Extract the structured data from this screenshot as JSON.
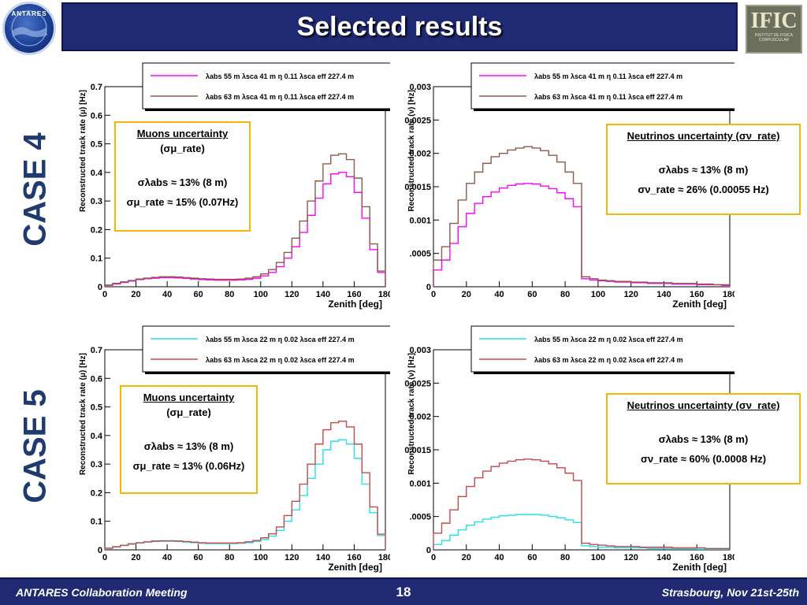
{
  "header": {
    "title": "Selected results"
  },
  "logos": {
    "left_text": "ANTARES",
    "right_text": "IFIC",
    "right_subtext": "INSTITUT DE FISICA CORPUSCULAR"
  },
  "cases": [
    {
      "label": "CASE 4"
    },
    {
      "label": "CASE 5"
    }
  ],
  "colors": {
    "case4_series1": "#ff00ff",
    "case4_series2": "#8b5a48",
    "case5_series1": "#22e0ee",
    "case5_series2": "#c84848",
    "uncertainty_border": "#f2b705",
    "bar": "#1f2a73"
  },
  "boxes": {
    "c4_mu": {
      "title": "Muons uncertainty",
      "paren": "(σμ_rate)",
      "line1": "σλabs ≈ 13% (8 m)",
      "line2": "σμ_rate ≈ 15% (0.07Hz)"
    },
    "c4_nu": {
      "title": "Neutrinos uncertainty (σν_rate)",
      "line1": "σλabs ≈ 13% (8 m)",
      "line2": "σν_rate ≈ 26% (0.00055 Hz)"
    },
    "c5_mu": {
      "title": "Muons uncertainty",
      "paren": "(σμ_rate)",
      "line1": "σλabs ≈ 13% (8 m)",
      "line2": "σμ_rate ≈ 13% (0.06Hz)"
    },
    "c5_nu": {
      "title": "Neutrinos uncertainty (σν_rate)",
      "line1": "σλabs ≈ 13% (8 m)",
      "line2": "σν_rate ≈ 60% (0.0008 Hz)"
    }
  },
  "footer": {
    "left": "ANTARES Collaboration Meeting",
    "page": "18",
    "right": "Strasbourg, Nov 21st-25th"
  },
  "chart_data": [
    {
      "id": "c4_mu",
      "type": "line",
      "xlabel": "Zenith [deg]",
      "ylabel": "Reconstructed track rate (μ) [Hz]",
      "xlim": [
        0,
        180
      ],
      "ylim": [
        0,
        0.7
      ],
      "xticks": [
        "0",
        "20",
        "40",
        "60",
        "80",
        "100",
        "120",
        "140",
        "160",
        "180"
      ],
      "yticks": [
        "0",
        "0.1",
        "0.2",
        "0.3",
        "0.4",
        "0.5",
        "0.6",
        "0.7"
      ],
      "x": [
        0,
        5,
        10,
        15,
        20,
        25,
        30,
        35,
        40,
        45,
        50,
        55,
        60,
        65,
        70,
        75,
        80,
        85,
        90,
        95,
        100,
        105,
        110,
        115,
        120,
        125,
        130,
        135,
        140,
        145,
        150,
        155,
        160,
        165,
        170,
        175
      ],
      "series": [
        {
          "name": "λabs 55 m λsca 41 m η 0.11 λsca eff 227.4 m",
          "color": "#ff00ff",
          "values": [
            0.005,
            0.01,
            0.015,
            0.02,
            0.025,
            0.028,
            0.03,
            0.032,
            0.032,
            0.031,
            0.029,
            0.027,
            0.025,
            0.024,
            0.023,
            0.023,
            0.023,
            0.024,
            0.026,
            0.03,
            0.038,
            0.05,
            0.07,
            0.1,
            0.14,
            0.19,
            0.25,
            0.31,
            0.36,
            0.395,
            0.4,
            0.385,
            0.33,
            0.24,
            0.13,
            0.05
          ]
        },
        {
          "name": "λabs 63 m λsca 41 m η 0.11 λsca eff 227.4 m",
          "color": "#8b5a48",
          "values": [
            0.006,
            0.012,
            0.017,
            0.022,
            0.027,
            0.03,
            0.033,
            0.035,
            0.035,
            0.034,
            0.032,
            0.03,
            0.028,
            0.027,
            0.026,
            0.026,
            0.026,
            0.027,
            0.03,
            0.035,
            0.045,
            0.06,
            0.085,
            0.12,
            0.17,
            0.23,
            0.3,
            0.37,
            0.43,
            0.46,
            0.465,
            0.445,
            0.38,
            0.28,
            0.15,
            0.055
          ]
        }
      ]
    },
    {
      "id": "c4_nu",
      "type": "line",
      "xlabel": "Zenith [deg]",
      "ylabel": "Reconstructed track rate (ν) [Hz]",
      "xlim": [
        0,
        180
      ],
      "ylim": [
        0,
        0.003
      ],
      "xticks": [
        "0",
        "20",
        "40",
        "60",
        "80",
        "100",
        "120",
        "140",
        "160",
        "180"
      ],
      "yticks": [
        "0",
        ".0005",
        "0.001",
        "0.0015",
        "0.002",
        "0.0025",
        "0.003"
      ],
      "x": [
        0,
        5,
        10,
        15,
        20,
        25,
        30,
        35,
        40,
        45,
        50,
        55,
        60,
        65,
        70,
        75,
        80,
        85,
        90,
        95,
        100,
        105,
        110,
        115,
        120,
        125,
        130,
        135,
        140,
        145,
        150,
        155,
        160,
        165,
        170,
        175
      ],
      "series": [
        {
          "name": "λabs 55 m λsca 41 m η 0.11 λsca eff 227.4 m",
          "color": "#ff00ff",
          "values": [
            0.00025,
            0.0004,
            0.00065,
            0.0009,
            0.0011,
            0.00125,
            0.00135,
            0.00142,
            0.00148,
            0.00152,
            0.00154,
            0.00155,
            0.00154,
            0.00151,
            0.00147,
            0.00141,
            0.00132,
            0.0012,
            0.00012,
            0.0001,
            9e-05,
            8e-05,
            7e-05,
            7e-05,
            6e-05,
            6e-05,
            5e-05,
            5e-05,
            5e-05,
            4e-05,
            4e-05,
            4e-05,
            3e-05,
            3e-05,
            3e-05,
            2e-05
          ]
        },
        {
          "name": "λabs 63 m λsca 41 m η 0.11 λsca eff 227.4 m",
          "color": "#8b5a48",
          "values": [
            0.0004,
            0.0006,
            0.00095,
            0.0013,
            0.00155,
            0.00172,
            0.00185,
            0.00195,
            0.002,
            0.00205,
            0.00208,
            0.0021,
            0.00208,
            0.00204,
            0.00197,
            0.00187,
            0.00172,
            0.00155,
            0.00015,
            0.00012,
            0.0001,
            9e-05,
            8e-05,
            8e-05,
            7e-05,
            7e-05,
            6e-05,
            6e-05,
            6e-05,
            5e-05,
            5e-05,
            5e-05,
            4e-05,
            4e-05,
            3e-05,
            3e-05
          ]
        }
      ]
    },
    {
      "id": "c5_mu",
      "type": "line",
      "xlabel": "Zenith [deg]",
      "ylabel": "Reconstructed track rate (μ) [Hz]",
      "xlim": [
        0,
        180
      ],
      "ylim": [
        0,
        0.7
      ],
      "xticks": [
        "0",
        "20",
        "40",
        "60",
        "80",
        "100",
        "120",
        "140",
        "160",
        "180"
      ],
      "yticks": [
        "0",
        "0.1",
        "0.2",
        "0.3",
        "0.4",
        "0.5",
        "0.6",
        "0.7"
      ],
      "x": [
        0,
        5,
        10,
        15,
        20,
        25,
        30,
        35,
        40,
        45,
        50,
        55,
        60,
        65,
        70,
        75,
        80,
        85,
        90,
        95,
        100,
        105,
        110,
        115,
        120,
        125,
        130,
        135,
        140,
        145,
        150,
        155,
        160,
        165,
        170,
        175
      ],
      "series": [
        {
          "name": "λabs 55 m λsca 22 m η 0.02 λsca eff 227.4 m",
          "color": "#22e0ee",
          "values": [
            0.005,
            0.01,
            0.015,
            0.02,
            0.024,
            0.027,
            0.029,
            0.03,
            0.03,
            0.029,
            0.027,
            0.025,
            0.023,
            0.022,
            0.022,
            0.022,
            0.022,
            0.023,
            0.025,
            0.029,
            0.036,
            0.048,
            0.068,
            0.1,
            0.14,
            0.19,
            0.25,
            0.3,
            0.35,
            0.38,
            0.385,
            0.37,
            0.32,
            0.23,
            0.13,
            0.05
          ]
        },
        {
          "name": "λabs 63 m λsca 22 m η 0.02 λsca eff 227.4 m",
          "color": "#c84848",
          "values": [
            0.006,
            0.011,
            0.016,
            0.021,
            0.025,
            0.028,
            0.031,
            0.032,
            0.032,
            0.031,
            0.029,
            0.027,
            0.025,
            0.024,
            0.024,
            0.024,
            0.024,
            0.025,
            0.028,
            0.033,
            0.042,
            0.056,
            0.08,
            0.12,
            0.17,
            0.23,
            0.3,
            0.37,
            0.42,
            0.445,
            0.45,
            0.43,
            0.37,
            0.27,
            0.15,
            0.055
          ]
        }
      ]
    },
    {
      "id": "c5_nu",
      "type": "line",
      "xlabel": "Zenith [deg]",
      "ylabel": "Reconstructed track rate (ν) [Hz]",
      "xlim": [
        0,
        180
      ],
      "ylim": [
        0,
        0.003
      ],
      "xticks": [
        "0",
        "20",
        "40",
        "60",
        "80",
        "100",
        "120",
        "140",
        "160",
        "180"
      ],
      "yticks": [
        "0",
        ".0005",
        "0.001",
        "0.0015",
        "0.002",
        "0.0025",
        "0.003"
      ],
      "x": [
        0,
        5,
        10,
        15,
        20,
        25,
        30,
        35,
        40,
        45,
        50,
        55,
        60,
        65,
        70,
        75,
        80,
        85,
        90,
        95,
        100,
        105,
        110,
        115,
        120,
        125,
        130,
        135,
        140,
        145,
        150,
        155,
        160,
        165,
        170,
        175
      ],
      "series": [
        {
          "name": "λabs 55 m λsca 22 m η 0.02 λsca eff 227.4 m",
          "color": "#22e0ee",
          "values": [
            8e-05,
            0.00014,
            0.00022,
            0.0003,
            0.00037,
            0.00042,
            0.00046,
            0.00049,
            0.00051,
            0.00052,
            0.00053,
            0.00053,
            0.00053,
            0.00052,
            0.0005,
            0.00048,
            0.00045,
            0.00041,
            6e-05,
            5e-05,
            4e-05,
            4e-05,
            3e-05,
            3e-05,
            3e-05,
            3e-05,
            2e-05,
            2e-05,
            2e-05,
            2e-05,
            2e-05,
            2e-05,
            1e-05,
            1e-05,
            1e-05,
            1e-05
          ]
        },
        {
          "name": "λabs 63 m λsca 22 m η 0.02 λsca eff 227.4 m",
          "color": "#c84848",
          "values": [
            0.00025,
            0.0004,
            0.0006,
            0.0008,
            0.00095,
            0.00108,
            0.00118,
            0.00125,
            0.0013,
            0.00133,
            0.00135,
            0.00136,
            0.00135,
            0.00133,
            0.00129,
            0.00123,
            0.00115,
            0.00104,
            0.0001,
            8e-05,
            7e-05,
            6e-05,
            5e-05,
            5e-05,
            5e-05,
            4e-05,
            4e-05,
            4e-05,
            4e-05,
            3e-05,
            3e-05,
            3e-05,
            3e-05,
            2e-05,
            2e-05,
            2e-05
          ]
        }
      ]
    }
  ]
}
